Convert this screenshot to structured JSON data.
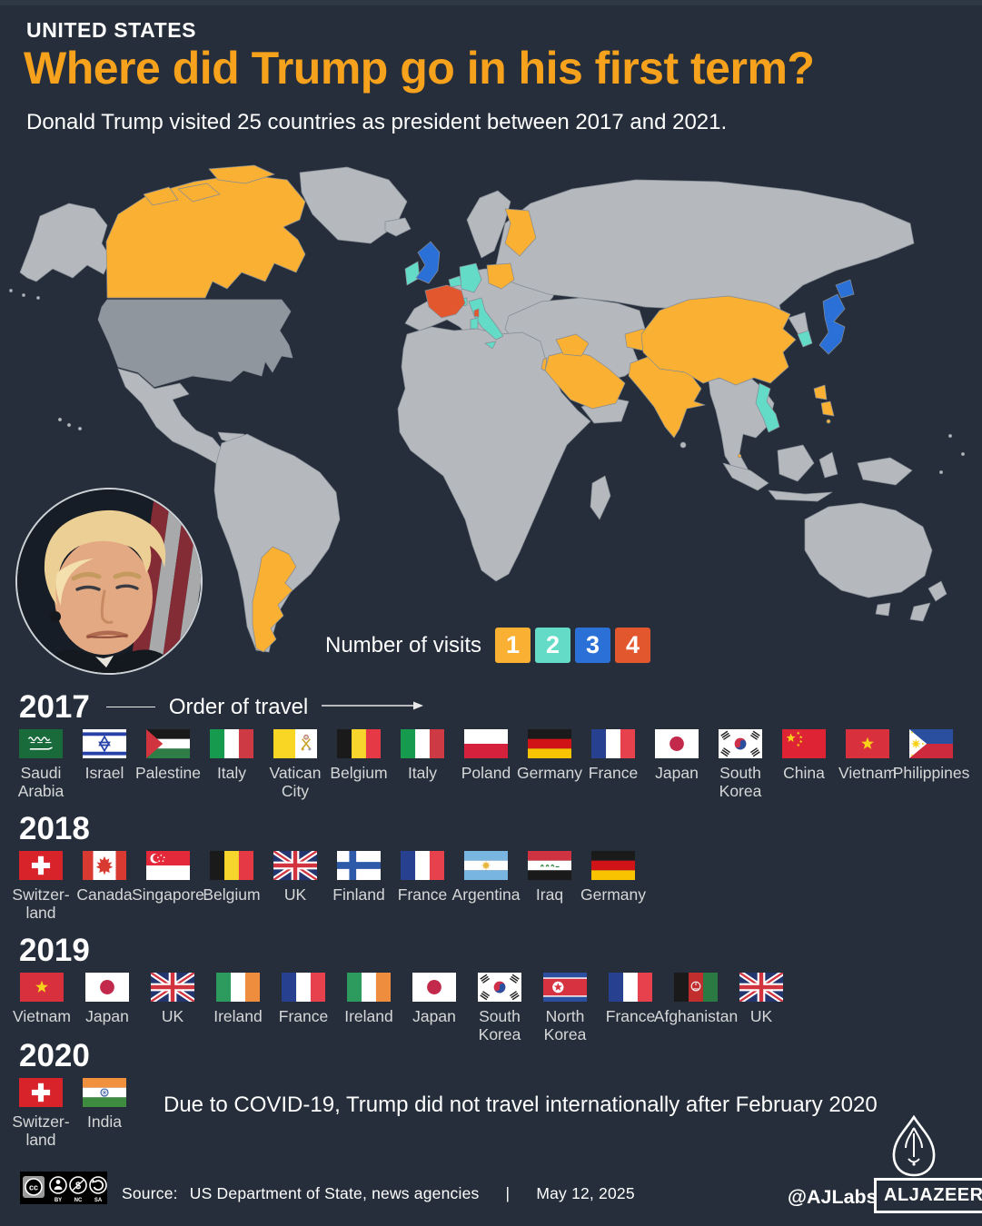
{
  "header": {
    "kicker": "UNITED STATES",
    "title": "Where did Trump go in his first term?",
    "subtitle": "Donald Trump visited 25 countries as president between 2017 and 2021."
  },
  "legend": {
    "label": "Number of visits",
    "items": [
      {
        "value": "1",
        "color": "#f9b033"
      },
      {
        "value": "2",
        "color": "#63dbc7"
      },
      {
        "value": "3",
        "color": "#2b70d6"
      },
      {
        "value": "4",
        "color": "#e2572e"
      }
    ]
  },
  "order_of_travel": {
    "label": "Order of travel"
  },
  "map": {
    "ocean_color": "#252e3a",
    "land_color": "#b5b8bc",
    "us_color": "#8f969d",
    "border_color": "#858c95",
    "visit_colors": {
      "1": "#f9b033",
      "2": "#63dbc7",
      "3": "#2b70d6",
      "4": "#e2572e"
    },
    "country_visits": {
      "ca": 1,
      "arg": 1,
      "fi": 1,
      "pl": 1,
      "sa": 1,
      "iq": 1,
      "af": 1,
      "in": 1,
      "cn": 1,
      "ph": 1,
      "il": 1,
      "sg": 1,
      "ie": 2,
      "be": 2,
      "de": 2,
      "ch": 2,
      "it": 2,
      "vn": 2,
      "kr": 2,
      "gb": 3,
      "jp": 3,
      "fr": 4
    }
  },
  "years": [
    {
      "year": "2017",
      "visits": [
        {
          "country": "Saudi Arabia",
          "label": "Saudi\nArabia",
          "flag": "sa"
        },
        {
          "country": "Israel",
          "label": "Israel",
          "flag": "il"
        },
        {
          "country": "Palestine",
          "label": "Palestine",
          "flag": "ps"
        },
        {
          "country": "Italy",
          "label": "Italy",
          "flag": "it"
        },
        {
          "country": "Vatican City",
          "label": "Vatican\nCity",
          "flag": "va"
        },
        {
          "country": "Belgium",
          "label": "Belgium",
          "flag": "be"
        },
        {
          "country": "Italy",
          "label": "Italy",
          "flag": "it"
        },
        {
          "country": "Poland",
          "label": "Poland",
          "flag": "pl"
        },
        {
          "country": "Germany",
          "label": "Germany",
          "flag": "de"
        },
        {
          "country": "France",
          "label": "France",
          "flag": "fr"
        },
        {
          "country": "Japan",
          "label": "Japan",
          "flag": "jp"
        },
        {
          "country": "South Korea",
          "label": "South\nKorea",
          "flag": "kr"
        },
        {
          "country": "China",
          "label": "China",
          "flag": "cn"
        },
        {
          "country": "Vietnam",
          "label": "Vietnam",
          "flag": "vn"
        },
        {
          "country": "Philippines",
          "label": "Philippines",
          "flag": "ph"
        }
      ]
    },
    {
      "year": "2018",
      "visits": [
        {
          "country": "Switzerland",
          "label": "Switzer-\nland",
          "flag": "ch"
        },
        {
          "country": "Canada",
          "label": "Canada",
          "flag": "ca"
        },
        {
          "country": "Singapore",
          "label": "Singapore",
          "flag": "sg"
        },
        {
          "country": "Belgium",
          "label": "Belgium",
          "flag": "be"
        },
        {
          "country": "UK",
          "label": "UK",
          "flag": "gb"
        },
        {
          "country": "Finland",
          "label": "Finland",
          "flag": "fi"
        },
        {
          "country": "France",
          "label": "France",
          "flag": "fr"
        },
        {
          "country": "Argentina",
          "label": "Argentina",
          "flag": "arg"
        },
        {
          "country": "Iraq",
          "label": "Iraq",
          "flag": "iq"
        },
        {
          "country": "Germany",
          "label": "Germany",
          "flag": "de"
        }
      ]
    },
    {
      "year": "2019",
      "visits": [
        {
          "country": "Vietnam",
          "label": "Vietnam",
          "flag": "vn"
        },
        {
          "country": "Japan",
          "label": "Japan",
          "flag": "jp"
        },
        {
          "country": "UK",
          "label": "UK",
          "flag": "gb"
        },
        {
          "country": "Ireland",
          "label": "Ireland",
          "flag": "ie"
        },
        {
          "country": "France",
          "label": "France",
          "flag": "fr"
        },
        {
          "country": "Ireland",
          "label": "Ireland",
          "flag": "ie"
        },
        {
          "country": "Japan",
          "label": "Japan",
          "flag": "jp"
        },
        {
          "country": "South Korea",
          "label": "South\nKorea",
          "flag": "kr"
        },
        {
          "country": "North Korea",
          "label": "North\nKorea",
          "flag": "kp"
        },
        {
          "country": "France",
          "label": "France",
          "flag": "fr"
        },
        {
          "country": "Afghanistan",
          "label": "Afghanistan",
          "flag": "af"
        },
        {
          "country": "UK",
          "label": "UK",
          "flag": "gb"
        }
      ]
    },
    {
      "year": "2020",
      "visits": [
        {
          "country": "Switzerland",
          "label": "Switzer-\nland",
          "flag": "ch"
        },
        {
          "country": "India",
          "label": "India",
          "flag": "in"
        }
      ],
      "note": "Due to COVID-19, Trump did not travel internationally after February 2020"
    }
  ],
  "footer": {
    "license": "CC BY NC SA",
    "license_parts": [
      "BY",
      "NC",
      "SA"
    ],
    "source_label": "Source:",
    "source": "US Department of State, news agencies",
    "separator": "|",
    "date": "May 12, 2025",
    "credit": "@AJLabs",
    "brand": "ALJAZEERA"
  }
}
